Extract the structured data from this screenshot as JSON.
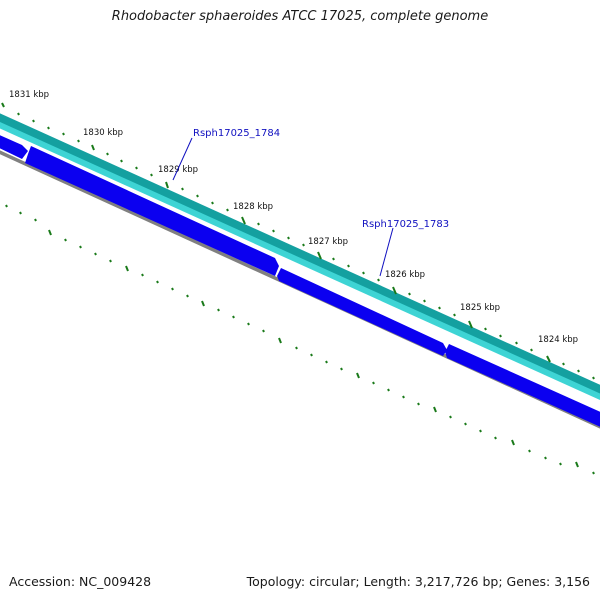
{
  "title": "Rhodobacter sphaeroides ATCC 17025, complete genome",
  "footer": {
    "accession": "Accession: NC_009428",
    "stats": "Topology: circular; Length: 3,217,726 bp; Genes: 3,156"
  },
  "map": {
    "ticks": [
      "1831 kbp",
      "1830 kbp",
      "1829 kbp",
      "1828 kbp",
      "1827 kbp",
      "1826 kbp",
      "1825 kbp",
      "1824 kbp"
    ],
    "genes": [
      "Rsph17025_1784",
      "Rsph17025_1783"
    ],
    "colors": {
      "cds_track": "#0b00f0",
      "rna_track_outer": "#14a0a0",
      "rna_track_inner": "#3ed4d4",
      "backbone": "#808080",
      "ticks": "#1a7a1a",
      "gene_label": "#1010c0"
    }
  }
}
